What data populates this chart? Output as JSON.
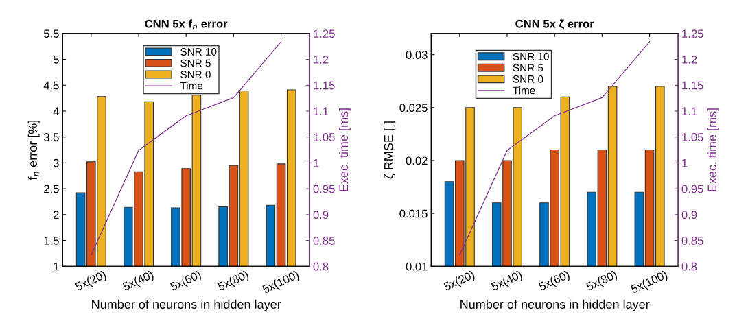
{
  "chart_data": [
    {
      "type": "bar",
      "title": "CNN 5x f$_{n}$ error",
      "xlabel": "Number of neurons in hidden layer",
      "ylabel": "f$_{n}$ error [%]",
      "y2label": "Exec. time [ms]",
      "categories": [
        "5x(20)",
        "5x(40)",
        "5x(60)",
        "5x(80)",
        "5x(100)"
      ],
      "series": [
        {
          "name": "SNR 10",
          "color": "#0072bd",
          "values": [
            2.42,
            2.14,
            2.13,
            2.15,
            2.18
          ]
        },
        {
          "name": "SNR 5",
          "color": "#d95319",
          "values": [
            3.02,
            2.83,
            2.89,
            2.95,
            2.98
          ]
        },
        {
          "name": "SNR 0",
          "color": "#edb120",
          "values": [
            4.28,
            4.18,
            4.31,
            4.39,
            4.41
          ]
        },
        {
          "name": "Time",
          "type": "line",
          "axis": "y2",
          "color": "#7e2f8e",
          "values": [
            0.822,
            1.024,
            1.091,
            1.126,
            1.234
          ]
        }
      ],
      "ylim": [
        1,
        5.5
      ],
      "yticks": [
        1,
        1.5,
        2,
        2.5,
        3,
        3.5,
        4,
        4.5,
        5,
        5.5
      ],
      "y2lim": [
        0.8,
        1.25
      ],
      "y2ticks": [
        0.8,
        0.85,
        0.9,
        0.95,
        1,
        1.05,
        1.1,
        1.15,
        1.2,
        1.25
      ],
      "legend": "top",
      "grid": false,
      "marker": "none",
      "line_style": "solid"
    },
    {
      "type": "bar",
      "title": "CNN 5x ζ error",
      "xlabel": "Number of neurons in hidden layer",
      "ylabel": "ζ RMSE [ ]",
      "y2label": "Exec. time [ms]",
      "categories": [
        "5x(20)",
        "5x(40)",
        "5x(60)",
        "5x(80)",
        "5x(100)"
      ],
      "series": [
        {
          "name": "SNR 10",
          "color": "#0072bd",
          "values": [
            0.018,
            0.016,
            0.016,
            0.017,
            0.017
          ]
        },
        {
          "name": "SNR 5",
          "color": "#d95319",
          "values": [
            0.02,
            0.02,
            0.021,
            0.021,
            0.021
          ]
        },
        {
          "name": "SNR 0",
          "color": "#edb120",
          "values": [
            0.025,
            0.025,
            0.026,
            0.027,
            0.027
          ]
        },
        {
          "name": "Time",
          "type": "line",
          "axis": "y2",
          "color": "#7e2f8e",
          "values": [
            0.822,
            1.024,
            1.091,
            1.126,
            1.234
          ]
        }
      ],
      "ylim": [
        0.01,
        0.032
      ],
      "yticks": [
        0.01,
        0.015,
        0.02,
        0.025,
        0.03
      ],
      "y2lim": [
        0.8,
        1.25
      ],
      "y2ticks": [
        0.8,
        0.85,
        0.9,
        0.95,
        1,
        1.05,
        1.1,
        1.15,
        1.2,
        1.25
      ],
      "legend": "top left",
      "grid": false,
      "marker": "none",
      "line_style": "solid"
    }
  ]
}
